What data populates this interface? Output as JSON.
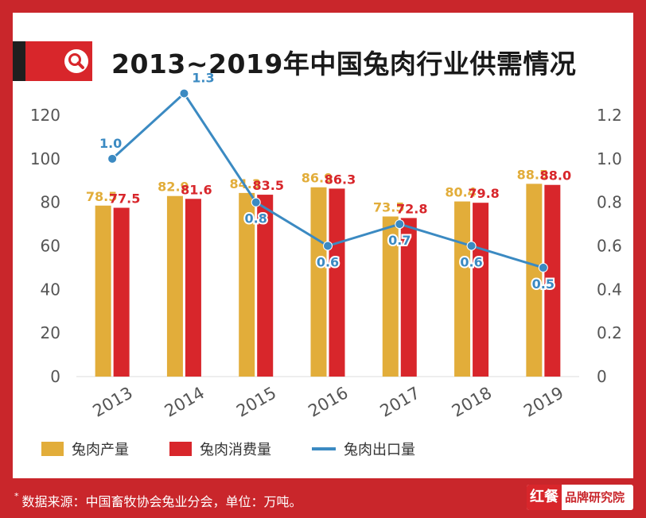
{
  "title": "2013~2019年中国兔肉行业供需情况",
  "colors": {
    "background": "#c9262b",
    "production": "#e2ad3a",
    "consumption": "#d8262b",
    "export": "#3b8ac2",
    "axis_text": "#555555"
  },
  "legend": {
    "production": "兔肉产量",
    "consumption": "兔肉消费量",
    "export": "兔肉出口量"
  },
  "footer": {
    "star": "*",
    "source": "数据来源：中国畜牧协会兔业分会，单位：万吨。",
    "brand_logo": "红餐",
    "brand_name": "品牌研究院"
  },
  "chart_data": {
    "type": "bar",
    "categories": [
      "2013",
      "2014",
      "2015",
      "2016",
      "2017",
      "2018",
      "2019"
    ],
    "series": [
      {
        "name": "兔肉产量",
        "type": "bar",
        "axis": "left",
        "values": [
          78.5,
          82.9,
          84.3,
          86.9,
          73.5,
          80.4,
          88.5
        ]
      },
      {
        "name": "兔肉消费量",
        "type": "bar",
        "axis": "left",
        "values": [
          77.5,
          81.6,
          83.5,
          86.3,
          72.8,
          79.8,
          88.0
        ]
      },
      {
        "name": "兔肉出口量",
        "type": "line",
        "axis": "right",
        "values": [
          1.0,
          1.3,
          0.8,
          0.6,
          0.7,
          0.6,
          0.5
        ]
      }
    ],
    "y_left": {
      "min": 0,
      "max": 120,
      "ticks": [
        0,
        20,
        40,
        60,
        80,
        100,
        120
      ]
    },
    "y_right": {
      "min": 0,
      "max": 1.2,
      "ticks": [
        "0",
        "0.2",
        "0.4",
        "0.6",
        "0.8",
        "1.0",
        "1.2"
      ]
    },
    "legend_position": "bottom-left",
    "grid": false
  }
}
